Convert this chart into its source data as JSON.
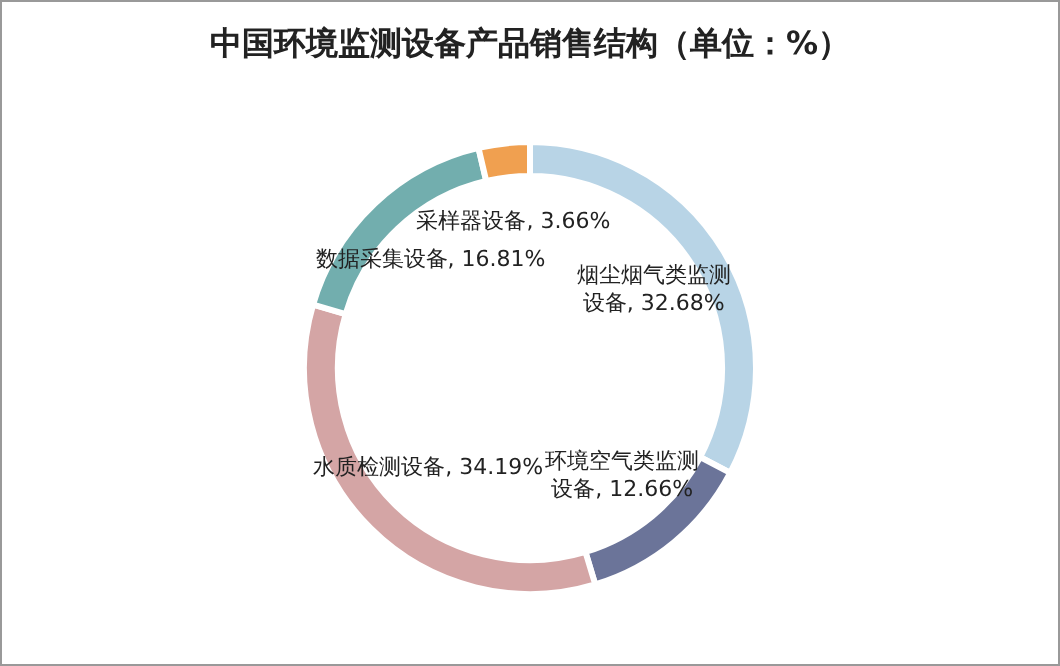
{
  "chart_data": {
    "type": "donut",
    "title": "中国环境监测设备产品销售结构（单位：%）",
    "categories": [
      "烟尘烟气类监测设备",
      "环境空气类监测设备",
      "水质检测设备",
      "数据采集设备",
      "采样器设备"
    ],
    "values": [
      32.68,
      12.66,
      34.19,
      16.81,
      3.66
    ],
    "value_labels": [
      "32.68%",
      "12.66%",
      "34.19%",
      "16.81%",
      "3.66%"
    ],
    "colors": [
      "#b8d4e6",
      "#6b7499",
      "#d4a5a5",
      "#72aeae",
      "#f0a050"
    ]
  }
}
